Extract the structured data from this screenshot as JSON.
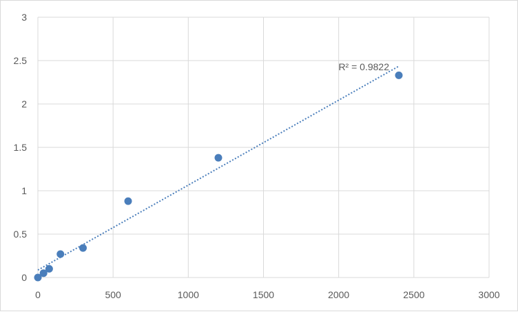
{
  "chart_data": {
    "type": "scatter",
    "title": "",
    "xlabel": "",
    "ylabel": "",
    "xlim": [
      0,
      3000
    ],
    "ylim": [
      0,
      3
    ],
    "x_ticks": [
      0,
      500,
      1000,
      1500,
      2000,
      2500,
      3000
    ],
    "y_ticks": [
      0,
      0.5,
      1,
      1.5,
      2,
      2.5,
      3
    ],
    "x_tick_labels": [
      "0",
      "500",
      "1000",
      "1500",
      "2000",
      "2500",
      "3000"
    ],
    "y_tick_labels": [
      "0",
      "0.5",
      "1",
      "1.5",
      "2",
      "2.5",
      "3"
    ],
    "grid": true,
    "legend": "none",
    "series": [
      {
        "x": [
          0,
          37.5,
          75,
          150,
          300,
          600,
          1200,
          2400
        ],
        "y": [
          0.0,
          0.05,
          0.1,
          0.27,
          0.34,
          0.88,
          1.38,
          2.33
        ],
        "color": "#4a7ebb"
      }
    ],
    "trendline": {
      "type": "linear",
      "style": "dotted",
      "color": "#4a7ebb",
      "x_range": [
        0,
        2400
      ],
      "label": "R² = 0.9822"
    }
  }
}
